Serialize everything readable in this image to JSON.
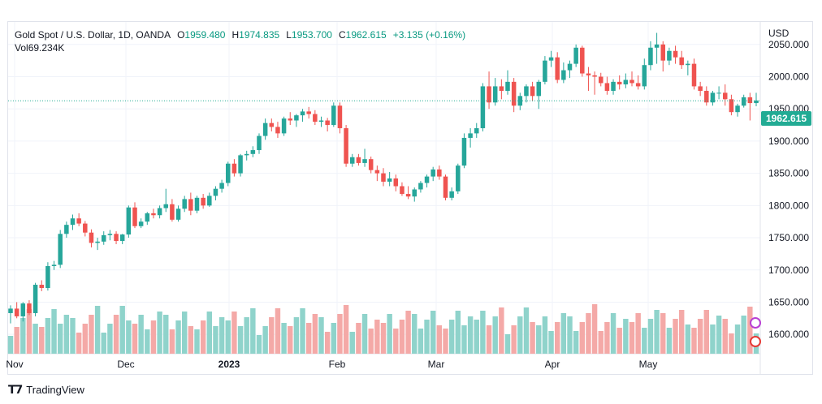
{
  "header": {
    "symbol": "Gold Spot / U.S. Dollar, 1D, OANDA",
    "o_label": "O",
    "o_value": "1959.480",
    "h_label": "H",
    "h_value": "1974.835",
    "l_label": "L",
    "l_value": "1953.700",
    "c_label": "C",
    "c_value": "1962.615",
    "change": "+3.135 (+0.16%)",
    "vol_label": "Vol",
    "vol_value": "69.234K"
  },
  "axis": {
    "currency": "USD"
  },
  "last_price_tag": "1962.615",
  "footer": {
    "brand": "TradingView"
  },
  "colors": {
    "up": "#26a69a",
    "down": "#ef5350",
    "vol_up": "#8fd3cb",
    "vol_down": "#f4a9a7",
    "grid": "#f0f3fa",
    "price_line": "#22ab94"
  },
  "chart_data": {
    "type": "candlestick",
    "y_ticks": [
      "1600.000",
      "1650.000",
      "1700.000",
      "1750.000",
      "1800.000",
      "1850.000",
      "1900.000",
      "1950.000",
      "2000.000",
      "2050.000"
    ],
    "ylim": [
      1570,
      2085
    ],
    "x_ticks": [
      "Nov",
      "Dec",
      "2023",
      "Feb",
      "Mar",
      "Apr",
      "May"
    ],
    "last_price": 1962.615,
    "candles": [
      {
        "o": 1633,
        "h": 1645,
        "l": 1617,
        "c": 1640
      },
      {
        "o": 1640,
        "h": 1650,
        "l": 1625,
        "c": 1628
      },
      {
        "o": 1628,
        "h": 1650,
        "l": 1620,
        "c": 1648
      },
      {
        "o": 1648,
        "h": 1653,
        "l": 1630,
        "c": 1633
      },
      {
        "o": 1633,
        "h": 1680,
        "l": 1628,
        "c": 1677
      },
      {
        "o": 1677,
        "h": 1684,
        "l": 1667,
        "c": 1672
      },
      {
        "o": 1672,
        "h": 1712,
        "l": 1668,
        "c": 1706
      },
      {
        "o": 1706,
        "h": 1714,
        "l": 1700,
        "c": 1708
      },
      {
        "o": 1708,
        "h": 1762,
        "l": 1703,
        "c": 1756
      },
      {
        "o": 1756,
        "h": 1775,
        "l": 1750,
        "c": 1770
      },
      {
        "o": 1770,
        "h": 1786,
        "l": 1762,
        "c": 1780
      },
      {
        "o": 1780,
        "h": 1788,
        "l": 1768,
        "c": 1772
      },
      {
        "o": 1772,
        "h": 1776,
        "l": 1752,
        "c": 1758
      },
      {
        "o": 1758,
        "h": 1763,
        "l": 1735,
        "c": 1742
      },
      {
        "o": 1742,
        "h": 1750,
        "l": 1731,
        "c": 1744
      },
      {
        "o": 1744,
        "h": 1760,
        "l": 1739,
        "c": 1754
      },
      {
        "o": 1754,
        "h": 1762,
        "l": 1746,
        "c": 1756
      },
      {
        "o": 1756,
        "h": 1760,
        "l": 1740,
        "c": 1745
      },
      {
        "o": 1745,
        "h": 1756,
        "l": 1740,
        "c": 1755
      },
      {
        "o": 1755,
        "h": 1800,
        "l": 1750,
        "c": 1797
      },
      {
        "o": 1797,
        "h": 1805,
        "l": 1765,
        "c": 1768
      },
      {
        "o": 1768,
        "h": 1780,
        "l": 1765,
        "c": 1775
      },
      {
        "o": 1775,
        "h": 1790,
        "l": 1770,
        "c": 1788
      },
      {
        "o": 1788,
        "h": 1795,
        "l": 1780,
        "c": 1785
      },
      {
        "o": 1785,
        "h": 1800,
        "l": 1780,
        "c": 1796
      },
      {
        "o": 1796,
        "h": 1826,
        "l": 1790,
        "c": 1802
      },
      {
        "o": 1802,
        "h": 1810,
        "l": 1775,
        "c": 1778
      },
      {
        "o": 1778,
        "h": 1800,
        "l": 1775,
        "c": 1795
      },
      {
        "o": 1795,
        "h": 1815,
        "l": 1790,
        "c": 1810
      },
      {
        "o": 1810,
        "h": 1820,
        "l": 1785,
        "c": 1792
      },
      {
        "o": 1792,
        "h": 1815,
        "l": 1788,
        "c": 1812
      },
      {
        "o": 1812,
        "h": 1818,
        "l": 1795,
        "c": 1800
      },
      {
        "o": 1800,
        "h": 1820,
        "l": 1798,
        "c": 1815
      },
      {
        "o": 1815,
        "h": 1830,
        "l": 1808,
        "c": 1826
      },
      {
        "o": 1826,
        "h": 1840,
        "l": 1820,
        "c": 1835
      },
      {
        "o": 1835,
        "h": 1868,
        "l": 1830,
        "c": 1865
      },
      {
        "o": 1865,
        "h": 1872,
        "l": 1845,
        "c": 1850
      },
      {
        "o": 1850,
        "h": 1880,
        "l": 1845,
        "c": 1878
      },
      {
        "o": 1878,
        "h": 1885,
        "l": 1870,
        "c": 1880
      },
      {
        "o": 1880,
        "h": 1892,
        "l": 1875,
        "c": 1886
      },
      {
        "o": 1886,
        "h": 1912,
        "l": 1880,
        "c": 1908
      },
      {
        "o": 1908,
        "h": 1935,
        "l": 1902,
        "c": 1928
      },
      {
        "o": 1928,
        "h": 1935,
        "l": 1915,
        "c": 1922
      },
      {
        "o": 1922,
        "h": 1930,
        "l": 1905,
        "c": 1912
      },
      {
        "o": 1912,
        "h": 1938,
        "l": 1908,
        "c": 1935
      },
      {
        "o": 1935,
        "h": 1945,
        "l": 1925,
        "c": 1932
      },
      {
        "o": 1932,
        "h": 1942,
        "l": 1922,
        "c": 1940
      },
      {
        "o": 1940,
        "h": 1950,
        "l": 1930,
        "c": 1946
      },
      {
        "o": 1946,
        "h": 1953,
        "l": 1935,
        "c": 1942
      },
      {
        "o": 1942,
        "h": 1948,
        "l": 1925,
        "c": 1930
      },
      {
        "o": 1930,
        "h": 1938,
        "l": 1922,
        "c": 1932
      },
      {
        "o": 1932,
        "h": 1936,
        "l": 1915,
        "c": 1925
      },
      {
        "o": 1925,
        "h": 1960,
        "l": 1922,
        "c": 1955
      },
      {
        "o": 1955,
        "h": 1960,
        "l": 1912,
        "c": 1920
      },
      {
        "o": 1920,
        "h": 1925,
        "l": 1860,
        "c": 1865
      },
      {
        "o": 1865,
        "h": 1880,
        "l": 1860,
        "c": 1875
      },
      {
        "o": 1875,
        "h": 1880,
        "l": 1862,
        "c": 1866
      },
      {
        "o": 1866,
        "h": 1888,
        "l": 1860,
        "c": 1872
      },
      {
        "o": 1872,
        "h": 1876,
        "l": 1850,
        "c": 1855
      },
      {
        "o": 1855,
        "h": 1862,
        "l": 1838,
        "c": 1850
      },
      {
        "o": 1850,
        "h": 1858,
        "l": 1830,
        "c": 1837
      },
      {
        "o": 1837,
        "h": 1852,
        "l": 1830,
        "c": 1842
      },
      {
        "o": 1842,
        "h": 1848,
        "l": 1822,
        "c": 1830
      },
      {
        "o": 1830,
        "h": 1836,
        "l": 1815,
        "c": 1818
      },
      {
        "o": 1818,
        "h": 1830,
        "l": 1810,
        "c": 1814
      },
      {
        "o": 1814,
        "h": 1828,
        "l": 1806,
        "c": 1825
      },
      {
        "o": 1825,
        "h": 1838,
        "l": 1820,
        "c": 1835
      },
      {
        "o": 1835,
        "h": 1848,
        "l": 1828,
        "c": 1845
      },
      {
        "o": 1845,
        "h": 1860,
        "l": 1838,
        "c": 1856
      },
      {
        "o": 1856,
        "h": 1862,
        "l": 1840,
        "c": 1845
      },
      {
        "o": 1845,
        "h": 1848,
        "l": 1808,
        "c": 1812
      },
      {
        "o": 1812,
        "h": 1828,
        "l": 1808,
        "c": 1822
      },
      {
        "o": 1822,
        "h": 1865,
        "l": 1818,
        "c": 1862
      },
      {
        "o": 1862,
        "h": 1912,
        "l": 1858,
        "c": 1905
      },
      {
        "o": 1905,
        "h": 1920,
        "l": 1890,
        "c": 1912
      },
      {
        "o": 1912,
        "h": 1928,
        "l": 1905,
        "c": 1920
      },
      {
        "o": 1920,
        "h": 1990,
        "l": 1915,
        "c": 1985
      },
      {
        "o": 1985,
        "h": 2008,
        "l": 1950,
        "c": 1960
      },
      {
        "o": 1960,
        "h": 1998,
        "l": 1955,
        "c": 1985
      },
      {
        "o": 1985,
        "h": 1996,
        "l": 1965,
        "c": 1978
      },
      {
        "o": 1978,
        "h": 2010,
        "l": 1972,
        "c": 1992
      },
      {
        "o": 1992,
        "h": 1998,
        "l": 1945,
        "c": 1955
      },
      {
        "o": 1955,
        "h": 1975,
        "l": 1948,
        "c": 1970
      },
      {
        "o": 1970,
        "h": 1988,
        "l": 1960,
        "c": 1985
      },
      {
        "o": 1985,
        "h": 1992,
        "l": 1962,
        "c": 1970
      },
      {
        "o": 1970,
        "h": 1995,
        "l": 1950,
        "c": 1992
      },
      {
        "o": 1992,
        "h": 2032,
        "l": 1988,
        "c": 2025
      },
      {
        "o": 2025,
        "h": 2040,
        "l": 2015,
        "c": 2030
      },
      {
        "o": 2030,
        "h": 2038,
        "l": 1990,
        "c": 1995
      },
      {
        "o": 1995,
        "h": 2022,
        "l": 1990,
        "c": 2010
      },
      {
        "o": 2010,
        "h": 2025,
        "l": 1998,
        "c": 2020
      },
      {
        "o": 2020,
        "h": 2050,
        "l": 2015,
        "c": 2045
      },
      {
        "o": 2045,
        "h": 2048,
        "l": 2000,
        "c": 2005
      },
      {
        "o": 2005,
        "h": 2015,
        "l": 1978,
        "c": 2002
      },
      {
        "o": 2002,
        "h": 2008,
        "l": 1972,
        "c": 2000
      },
      {
        "o": 2000,
        "h": 2006,
        "l": 1985,
        "c": 1990
      },
      {
        "o": 1990,
        "h": 2000,
        "l": 1972,
        "c": 1978
      },
      {
        "o": 1978,
        "h": 1996,
        "l": 1972,
        "c": 1992
      },
      {
        "o": 1992,
        "h": 2002,
        "l": 1980,
        "c": 1988
      },
      {
        "o": 1988,
        "h": 2005,
        "l": 1982,
        "c": 1995
      },
      {
        "o": 1995,
        "h": 2008,
        "l": 1985,
        "c": 1990
      },
      {
        "o": 1990,
        "h": 2002,
        "l": 1980,
        "c": 1985
      },
      {
        "o": 1985,
        "h": 2028,
        "l": 1980,
        "c": 2018
      },
      {
        "o": 2018,
        "h": 2055,
        "l": 2010,
        "c": 2045
      },
      {
        "o": 2045,
        "h": 2068,
        "l": 2020,
        "c": 2050
      },
      {
        "o": 2050,
        "h": 2055,
        "l": 2008,
        "c": 2025
      },
      {
        "o": 2025,
        "h": 2045,
        "l": 2018,
        "c": 2040
      },
      {
        "o": 2040,
        "h": 2048,
        "l": 2020,
        "c": 2030
      },
      {
        "o": 2030,
        "h": 2040,
        "l": 2012,
        "c": 2018
      },
      {
        "o": 2018,
        "h": 2025,
        "l": 2002,
        "c": 2020
      },
      {
        "o": 2020,
        "h": 2028,
        "l": 1980,
        "c": 1985
      },
      {
        "o": 1985,
        "h": 1992,
        "l": 1970,
        "c": 1978
      },
      {
        "o": 1978,
        "h": 1985,
        "l": 1955,
        "c": 1960
      },
      {
        "o": 1960,
        "h": 1978,
        "l": 1955,
        "c": 1975
      },
      {
        "o": 1975,
        "h": 1985,
        "l": 1965,
        "c": 1975
      },
      {
        "o": 1975,
        "h": 1988,
        "l": 1955,
        "c": 1965
      },
      {
        "o": 1965,
        "h": 1972,
        "l": 1940,
        "c": 1945
      },
      {
        "o": 1945,
        "h": 1958,
        "l": 1938,
        "c": 1955
      },
      {
        "o": 1955,
        "h": 1972,
        "l": 1952,
        "c": 1968
      },
      {
        "o": 1968,
        "h": 1975,
        "l": 1932,
        "c": 1959
      },
      {
        "o": 1959,
        "h": 1975,
        "l": 1954,
        "c": 1963
      }
    ]
  }
}
